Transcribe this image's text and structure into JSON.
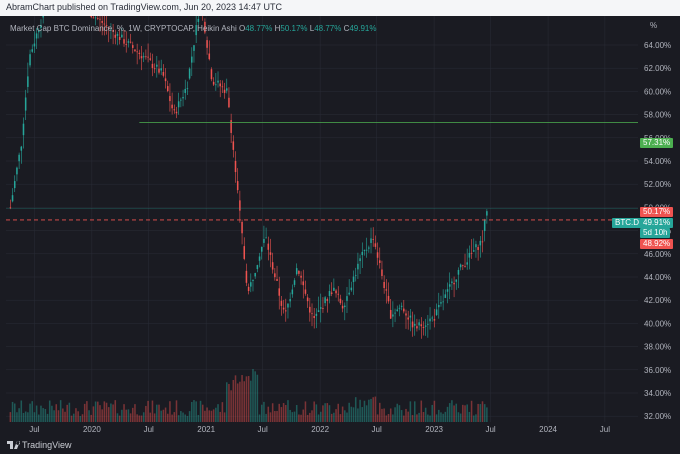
{
  "header": {
    "published": "AbramChart published on TradingView.com, Jun 20, 2023 14:47 UTC"
  },
  "legend": {
    "title": "Market Cap BTC Dominance, %, 1W, CRYPTOCAP, Heikin Ashi",
    "o_label": "O",
    "o": "48.77%",
    "h_label": "H",
    "h": "50.17%",
    "l_label": "L",
    "l": "48.77%",
    "c_label": "C",
    "c": "49.91%"
  },
  "footer": {
    "brand": "TradingView"
  },
  "colors": {
    "up": "#26a69a",
    "down": "#ef5350",
    "bg": "#1a1b22",
    "grid": "#2a2d37",
    "hline": "#4caf50",
    "dash": "#ef5350"
  },
  "axis": {
    "unit": "%",
    "y_ticks": [
      "64.00%",
      "62.00%",
      "60.00%",
      "58.00%",
      "56.00%",
      "54.00%",
      "52.00%",
      "50.00%",
      "48.00%",
      "46.00%",
      "44.00%",
      "42.00%",
      "40.00%",
      "38.00%",
      "36.00%",
      "34.00%",
      "32.00%"
    ],
    "x_ticks": [
      "Jul",
      "2020",
      "Jul",
      "2021",
      "Jul",
      "2022",
      "Jul",
      "2023",
      "Jul",
      "2024",
      "Jul"
    ]
  },
  "price_tags": {
    "level": "57.31%",
    "high": "50.17%",
    "symbol": "BTC.D",
    "close": "49.91%",
    "countdown": "5d 10h",
    "low": "48.92%"
  },
  "chart_data": {
    "type": "candlestick",
    "y_unit": "%",
    "ylim": [
      31.5,
      66.5
    ],
    "horizontal_line": 57.31,
    "dashed_line": 48.92,
    "keypoints": [
      [
        "2019-04-15",
        50.0
      ],
      [
        "2019-05-20",
        55.5
      ],
      [
        "2019-06-15",
        63.0
      ],
      [
        "2019-09-01",
        69.5
      ],
      [
        "2020-03-15",
        65.0
      ],
      [
        "2020-06-15",
        63.0
      ],
      [
        "2020-08-15",
        61.5
      ],
      [
        "2020-09-20",
        58.0
      ],
      [
        "2020-11-01",
        60.5
      ],
      [
        "2020-12-15",
        68.0
      ],
      [
        "2021-01-20",
        61.0
      ],
      [
        "2021-03-10",
        60.0
      ],
      [
        "2021-05-15",
        42.5
      ],
      [
        "2021-06-20",
        46.0
      ],
      [
        "2021-07-10",
        47.5
      ],
      [
        "2021-09-10",
        40.5
      ],
      [
        "2021-10-20",
        45.0
      ],
      [
        "2021-12-10",
        40.2
      ],
      [
        "2022-02-10",
        43.0
      ],
      [
        "2022-03-15",
        41.5
      ],
      [
        "2022-05-10",
        45.5
      ],
      [
        "2022-06-20",
        47.5
      ],
      [
        "2022-08-15",
        40.8
      ],
      [
        "2022-09-20",
        41.5
      ],
      [
        "2022-11-01",
        39.6
      ],
      [
        "2023-01-01",
        40.5
      ],
      [
        "2023-02-10",
        42.5
      ],
      [
        "2023-03-20",
        44.5
      ],
      [
        "2023-05-01",
        46.0
      ],
      [
        "2023-06-05",
        47.2
      ],
      [
        "2023-06-19",
        49.9
      ]
    ]
  }
}
